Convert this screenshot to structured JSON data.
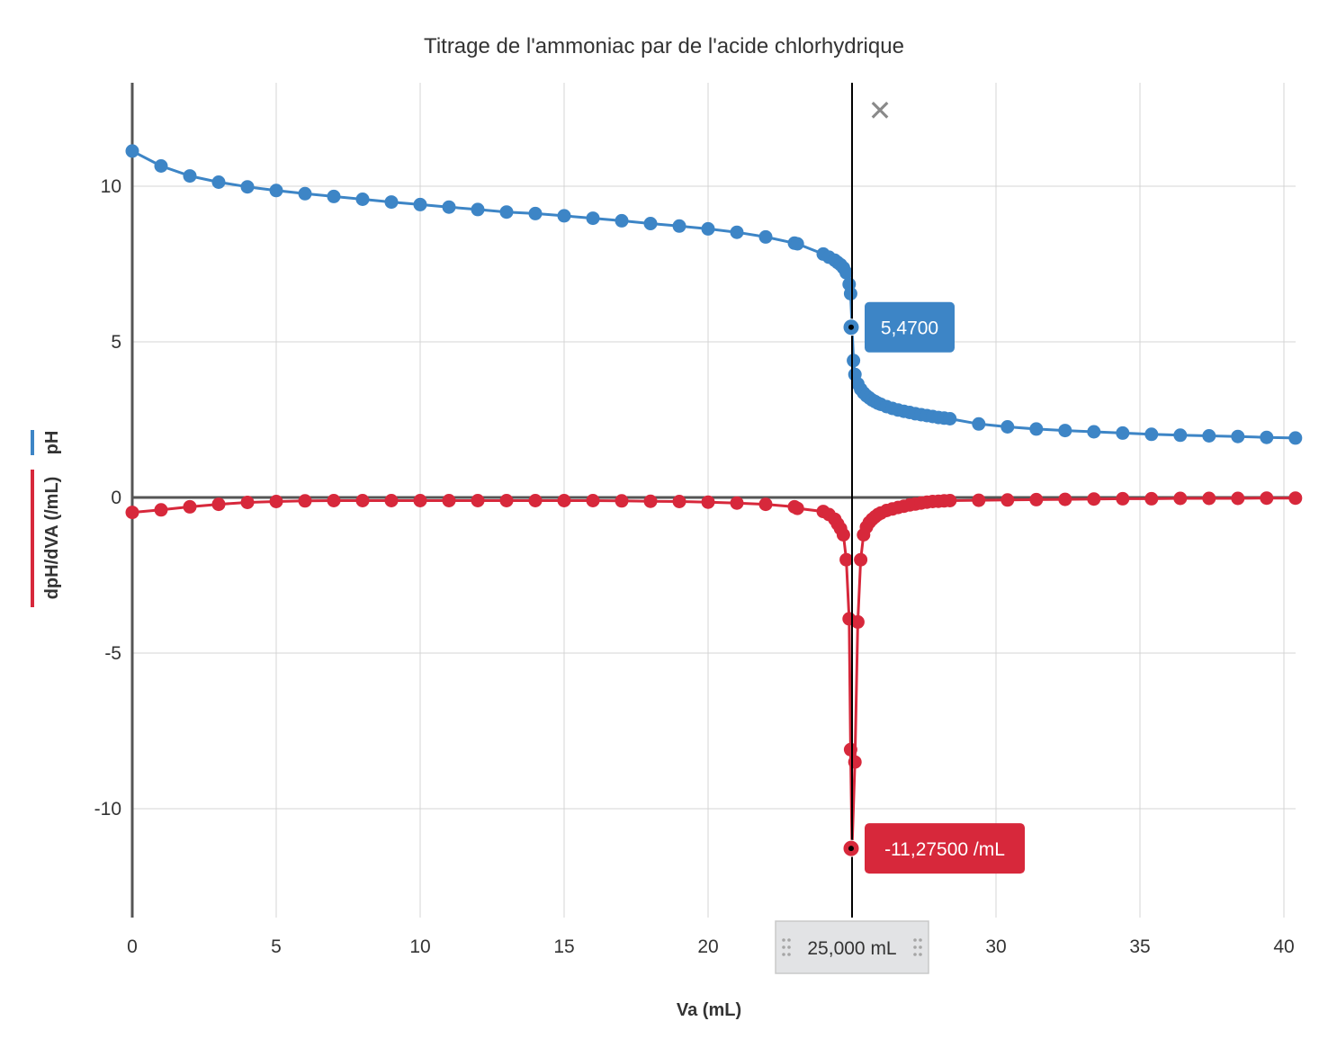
{
  "chart_data": {
    "type": "scatter",
    "title": "Titrage de l'ammoniac par de l'acide chlorhydrique",
    "xlabel": "Va (mL)",
    "ylabel_series": [
      "pH",
      "dpH/dVA (/mL)"
    ],
    "xlim": [
      0,
      40.5
    ],
    "ylim": [
      -13.5,
      13.5
    ],
    "x_ticks": [
      0,
      5,
      10,
      15,
      20,
      25,
      30,
      35,
      40
    ],
    "x_tick_labels": [
      "0",
      "5",
      "10",
      "15",
      "20",
      "",
      "30",
      "35",
      "40"
    ],
    "y_ticks": [
      10,
      5,
      0,
      -5,
      -10
    ],
    "y_tick_labels": [
      "10",
      "5",
      "0",
      "-5",
      "-10"
    ],
    "grid": true,
    "series": [
      {
        "name": "pH",
        "color": "#3d85c6",
        "points": [
          [
            0,
            11.13
          ],
          [
            1,
            10.65
          ],
          [
            2,
            10.33
          ],
          [
            3,
            10.13
          ],
          [
            4,
            9.98
          ],
          [
            5,
            9.86
          ],
          [
            6,
            9.76
          ],
          [
            7,
            9.67
          ],
          [
            8,
            9.58
          ],
          [
            9,
            9.49
          ],
          [
            10,
            9.41
          ],
          [
            11,
            9.33
          ],
          [
            12,
            9.25
          ],
          [
            13,
            9.17
          ],
          [
            14,
            9.12
          ],
          [
            15,
            9.05
          ],
          [
            16,
            8.97
          ],
          [
            17,
            8.89
          ],
          [
            18,
            8.8
          ],
          [
            19,
            8.72
          ],
          [
            20,
            8.63
          ],
          [
            21,
            8.52
          ],
          [
            22,
            8.37
          ],
          [
            23,
            8.17
          ],
          [
            23.1,
            8.15
          ],
          [
            24.0,
            7.82
          ],
          [
            24.2,
            7.72
          ],
          [
            24.4,
            7.62
          ],
          [
            24.5,
            7.55
          ],
          [
            24.6,
            7.48
          ],
          [
            24.7,
            7.38
          ],
          [
            24.8,
            7.22
          ],
          [
            24.9,
            6.85
          ],
          [
            24.95,
            6.55
          ],
          [
            25.0,
            5.47
          ],
          [
            25.05,
            4.4
          ],
          [
            25.1,
            3.95
          ],
          [
            25.2,
            3.65
          ],
          [
            25.3,
            3.48
          ],
          [
            25.4,
            3.36
          ],
          [
            25.5,
            3.27
          ],
          [
            25.6,
            3.2
          ],
          [
            25.7,
            3.13
          ],
          [
            25.8,
            3.08
          ],
          [
            25.9,
            3.03
          ],
          [
            26,
            2.99
          ],
          [
            26.2,
            2.92
          ],
          [
            26.4,
            2.86
          ],
          [
            26.6,
            2.81
          ],
          [
            26.8,
            2.77
          ],
          [
            27,
            2.73
          ],
          [
            27.2,
            2.69
          ],
          [
            27.4,
            2.66
          ],
          [
            27.6,
            2.63
          ],
          [
            27.8,
            2.6
          ],
          [
            28,
            2.57
          ],
          [
            28.2,
            2.55
          ],
          [
            28.4,
            2.53
          ],
          [
            29.4,
            2.36
          ],
          [
            30.4,
            2.27
          ],
          [
            31.4,
            2.2
          ],
          [
            32.4,
            2.15
          ],
          [
            33.4,
            2.11
          ],
          [
            34.4,
            2.07
          ],
          [
            35.4,
            2.03
          ],
          [
            36.4,
            2.0
          ],
          [
            37.4,
            1.98
          ],
          [
            38.4,
            1.96
          ],
          [
            39.4,
            1.93
          ],
          [
            40.4,
            1.91
          ]
        ]
      },
      {
        "name": "dpH/dVA (/mL)",
        "color": "#d7283b",
        "points": [
          [
            0,
            -0.48
          ],
          [
            1,
            -0.4
          ],
          [
            2,
            -0.3
          ],
          [
            3,
            -0.22
          ],
          [
            4,
            -0.16
          ],
          [
            5,
            -0.13
          ],
          [
            6,
            -0.11
          ],
          [
            7,
            -0.1
          ],
          [
            8,
            -0.1
          ],
          [
            9,
            -0.1
          ],
          [
            10,
            -0.1
          ],
          [
            11,
            -0.1
          ],
          [
            12,
            -0.1
          ],
          [
            13,
            -0.1
          ],
          [
            14,
            -0.1
          ],
          [
            15,
            -0.1
          ],
          [
            16,
            -0.1
          ],
          [
            17,
            -0.11
          ],
          [
            18,
            -0.12
          ],
          [
            19,
            -0.13
          ],
          [
            20,
            -0.15
          ],
          [
            21,
            -0.18
          ],
          [
            22,
            -0.22
          ],
          [
            23,
            -0.3
          ],
          [
            23.1,
            -0.35
          ],
          [
            24.0,
            -0.45
          ],
          [
            24.2,
            -0.55
          ],
          [
            24.4,
            -0.7
          ],
          [
            24.5,
            -0.85
          ],
          [
            24.6,
            -1.0
          ],
          [
            24.7,
            -1.2
          ],
          [
            24.8,
            -2.0
          ],
          [
            24.9,
            -3.9
          ],
          [
            24.95,
            -8.1
          ],
          [
            25.0,
            -11.275
          ],
          [
            25.1,
            -8.5
          ],
          [
            25.2,
            -4.0
          ],
          [
            25.3,
            -2.0
          ],
          [
            25.4,
            -1.2
          ],
          [
            25.5,
            -0.95
          ],
          [
            25.6,
            -0.8
          ],
          [
            25.7,
            -0.7
          ],
          [
            25.8,
            -0.62
          ],
          [
            25.9,
            -0.55
          ],
          [
            26,
            -0.5
          ],
          [
            26.2,
            -0.42
          ],
          [
            26.4,
            -0.37
          ],
          [
            26.6,
            -0.32
          ],
          [
            26.8,
            -0.28
          ],
          [
            27,
            -0.24
          ],
          [
            27.2,
            -0.21
          ],
          [
            27.4,
            -0.18
          ],
          [
            27.6,
            -0.15
          ],
          [
            27.8,
            -0.13
          ],
          [
            28,
            -0.12
          ],
          [
            28.2,
            -0.11
          ],
          [
            28.4,
            -0.1
          ],
          [
            29.4,
            -0.09
          ],
          [
            30.4,
            -0.08
          ],
          [
            31.4,
            -0.07
          ],
          [
            32.4,
            -0.06
          ],
          [
            33.4,
            -0.05
          ],
          [
            34.4,
            -0.04
          ],
          [
            35.4,
            -0.04
          ],
          [
            36.4,
            -0.03
          ],
          [
            37.4,
            -0.03
          ],
          [
            38.4,
            -0.03
          ],
          [
            39.4,
            -0.02
          ],
          [
            40.4,
            -0.02
          ]
        ]
      }
    ],
    "cursor": {
      "x": 25.0,
      "x_label": "25,000 mL",
      "ph_value": 5.47,
      "ph_label": "5,4700",
      "deriv_value": -11.275,
      "deriv_label": "-11,27500 /mL",
      "close_symbol": "✕"
    },
    "legend_placement": "left-vertical"
  }
}
